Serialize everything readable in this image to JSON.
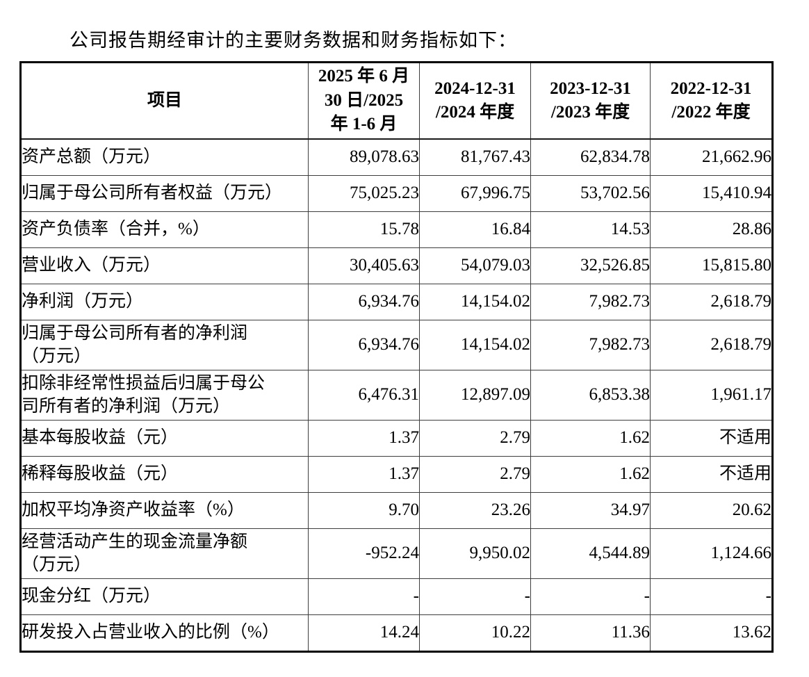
{
  "page": {
    "title": "公司报告期经审计的主要财务数据和财务指标如下："
  },
  "table": {
    "header": {
      "item_label": "项目",
      "periods": [
        "2025 年 6 月\n30 日/2025\n年 1-6 月",
        "2024-12-31\n/2024 年度",
        "2023-12-31\n/2023 年度",
        "2022-12-31\n/2022 年度"
      ]
    },
    "rows": [
      {
        "label": "资产总额（万元）",
        "values": [
          "89,078.63",
          "81,767.43",
          "62,834.78",
          "21,662.96"
        ]
      },
      {
        "label": "归属于母公司所有者权益（万元）",
        "values": [
          "75,025.23",
          "67,996.75",
          "53,702.56",
          "15,410.94"
        ]
      },
      {
        "label": "资产负债率（合并，%）",
        "values": [
          "15.78",
          "16.84",
          "14.53",
          "28.86"
        ]
      },
      {
        "label": "营业收入（万元）",
        "values": [
          "30,405.63",
          "54,079.03",
          "32,526.85",
          "15,815.80"
        ]
      },
      {
        "label": "净利润（万元）",
        "values": [
          "6,934.76",
          "14,154.02",
          "7,982.73",
          "2,618.79"
        ]
      },
      {
        "label": "归属于母公司所有者的净利润\n（万元）",
        "values": [
          "6,934.76",
          "14,154.02",
          "7,982.73",
          "2,618.79"
        ]
      },
      {
        "label": "扣除非经常性损益后归属于母公\n司所有者的净利润（万元）",
        "values": [
          "6,476.31",
          "12,897.09",
          "6,853.38",
          "1,961.17"
        ]
      },
      {
        "label": "基本每股收益（元）",
        "values": [
          "1.37",
          "2.79",
          "1.62",
          "不适用"
        ]
      },
      {
        "label": "稀释每股收益（元）",
        "values": [
          "1.37",
          "2.79",
          "1.62",
          "不适用"
        ]
      },
      {
        "label": "加权平均净资产收益率（%）",
        "values": [
          "9.70",
          "23.26",
          "34.97",
          "20.62"
        ]
      },
      {
        "label": "经营活动产生的现金流量净额\n（万元）",
        "values": [
          "-952.24",
          "9,950.02",
          "4,544.89",
          "1,124.66"
        ]
      },
      {
        "label": "现金分红（万元）",
        "values": [
          "-",
          "-",
          "-",
          "-"
        ]
      },
      {
        "label": "研发投入占营业收入的比例（%）",
        "values": [
          "14.24",
          "10.22",
          "11.36",
          "13.62"
        ]
      }
    ]
  }
}
